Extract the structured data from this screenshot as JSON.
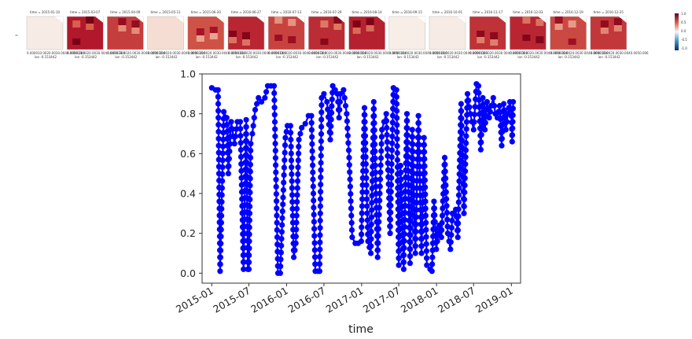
{
  "panels": {
    "titles": [
      "time = 2015-01-10",
      "time = 2015-03-07",
      "time = 2015-04-09",
      "time = 2015-05-11",
      "time = 2015-06-20",
      "time = 2016-06-27",
      "time = 2016-07-13",
      "time = 2016-07-29",
      "time = 2016-08-14",
      "time = 2016-09-15",
      "time = 2016-10-01",
      "time = 2016-11-17",
      "time = 2016-12-03",
      "time = 2016-12-19",
      "time = 2016-12-25"
    ],
    "fills": [
      0.02,
      0.75,
      0.62,
      0.08,
      0.55,
      0.7,
      0.6,
      0.68,
      0.72,
      0.01,
      0.02,
      0.66,
      0.7,
      0.58,
      0.64
    ],
    "x_caption": "0.000010.0020.0030.0040.0050.006",
    "lat_value": "-0.153442",
    "lat_prefix": "lon",
    "y_axis_label": "y",
    "colormap": "RdBu_r",
    "colorbar_ticks": [
      "1.0",
      "0.5",
      "0.0",
      "-0.5",
      "-1.0"
    ]
  },
  "chart_data": {
    "type": "scatter",
    "style": "line-with-markers",
    "color": "#0000ff",
    "xlabel": "time",
    "ylabel": "",
    "xlim": [
      "2014-11-15",
      "2019-02-15"
    ],
    "ylim": [
      -0.05,
      1.0
    ],
    "x_ticks": [
      "2015-01",
      "2015-07",
      "2016-01",
      "2016-07",
      "2017-01",
      "2017-07",
      "2018-01",
      "2018-07",
      "2019-01"
    ],
    "y_ticks": [
      "0.0",
      "0.2",
      "0.4",
      "0.6",
      "0.8",
      "1.0"
    ],
    "grid": false,
    "x": [
      "2015-01-01",
      "2015-01-20",
      "2015-02-01",
      "2015-02-11",
      "2015-03-01",
      "2015-03-15",
      "2015-03-23",
      "2015-04-06",
      "2015-04-22",
      "2015-05-06",
      "2015-05-20",
      "2015-06-05",
      "2015-06-18",
      "2015-06-26",
      "2015-07-01",
      "2015-07-10",
      "2015-07-18",
      "2015-08-01",
      "2015-08-17",
      "2015-09-01",
      "2015-09-17",
      "2015-10-01",
      "2015-10-17",
      "2015-11-01",
      "2015-11-20",
      "2015-12-01",
      "2015-12-15",
      "2015-12-26",
      "2016-01-05",
      "2016-01-20",
      "2016-02-05",
      "2016-02-15",
      "2016-03-01",
      "2016-03-15",
      "2016-04-01",
      "2016-04-17",
      "2016-05-01",
      "2016-05-20",
      "2016-06-01",
      "2016-06-10",
      "2016-06-20",
      "2016-07-01",
      "2016-07-16",
      "2016-08-01",
      "2016-08-13",
      "2016-08-25",
      "2016-09-05",
      "2016-09-13",
      "2016-09-20",
      "2016-10-05",
      "2016-10-20",
      "2016-11-01",
      "2016-11-16",
      "2016-12-01",
      "2016-12-15",
      "2016-12-30",
      "2017-01-15",
      "2017-02-01",
      "2017-02-15",
      "2017-03-01",
      "2017-03-20",
      "2017-04-10",
      "2017-05-01",
      "2017-05-20",
      "2017-06-05",
      "2017-06-20",
      "2017-07-01",
      "2017-07-10",
      "2017-07-25",
      "2017-08-10",
      "2017-08-25",
      "2017-09-05",
      "2017-09-20",
      "2017-10-05",
      "2017-10-20",
      "2017-11-01",
      "2017-11-15",
      "2017-12-01",
      "2017-12-10",
      "2017-12-20",
      "2017-12-31",
      "2018-01-15",
      "2018-01-25",
      "2018-02-10",
      "2018-02-25",
      "2018-03-10",
      "2018-03-20",
      "2018-04-05",
      "2018-04-15",
      "2018-05-01",
      "2018-05-15",
      "2018-06-01",
      "2018-06-15",
      "2018-07-01",
      "2018-07-15",
      "2018-07-25",
      "2018-08-05",
      "2018-08-15",
      "2018-08-25",
      "2018-09-05",
      "2018-09-15",
      "2018-09-25",
      "2018-10-05",
      "2018-10-15",
      "2018-10-25",
      "2018-11-05",
      "2018-11-15",
      "2018-11-25",
      "2018-12-05",
      "2018-12-15",
      "2018-12-25",
      "2019-01-01",
      "2019-01-05",
      "2019-01-10"
    ],
    "y": [
      0.93,
      0.92,
      0.92,
      0.01,
      0.81,
      0.78,
      0.5,
      0.76,
      0.65,
      0.76,
      0.76,
      0.02,
      0.77,
      0.02,
      0.02,
      0.65,
      0.7,
      0.82,
      0.88,
      0.86,
      0.88,
      0.94,
      0.94,
      0.94,
      0.0,
      0.0,
      0.38,
      0.68,
      0.74,
      0.74,
      0.08,
      0.15,
      0.67,
      0.73,
      0.75,
      0.79,
      0.79,
      0.01,
      0.01,
      0.01,
      0.88,
      0.9,
      0.86,
      0.67,
      0.94,
      0.92,
      0.9,
      0.78,
      0.9,
      0.92,
      0.8,
      0.58,
      0.18,
      0.15,
      0.15,
      0.16,
      0.83,
      0.16,
      0.1,
      0.86,
      0.08,
      0.72,
      0.8,
      0.2,
      0.93,
      0.92,
      0.04,
      0.54,
      0.02,
      0.8,
      0.05,
      0.72,
      0.1,
      0.79,
      0.1,
      0.68,
      0.04,
      0.02,
      0.01,
      0.36,
      0.12,
      0.24,
      0.18,
      0.58,
      0.2,
      0.12,
      0.3,
      0.32,
      0.18,
      0.85,
      0.3,
      0.9,
      0.8,
      0.72,
      0.95,
      0.94,
      0.62,
      0.88,
      0.72,
      0.86,
      0.78,
      0.84,
      0.88,
      0.8,
      0.78,
      0.84,
      0.64,
      0.85,
      0.72,
      0.8,
      0.86,
      0.82,
      0.66,
      0.86
    ]
  }
}
